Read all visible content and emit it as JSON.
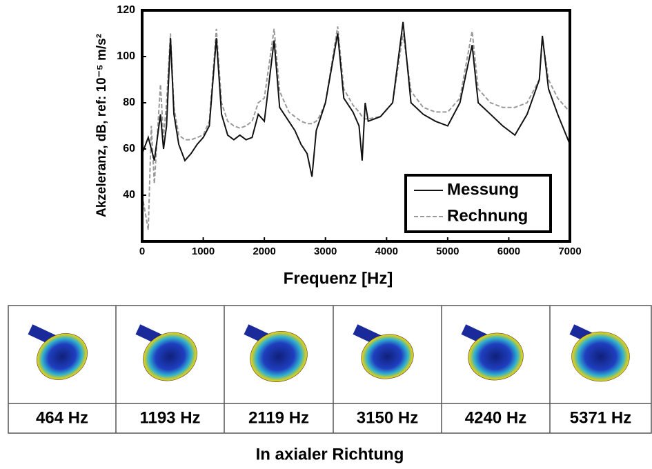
{
  "chart_data": {
    "type": "line",
    "xlabel": "Frequenz [Hz]",
    "ylabel": "Akzeleranz, dB, ref: 10⁻⁵ m/s²",
    "x": [
      0,
      100,
      150,
      200,
      300,
      350,
      400,
      464,
      520,
      600,
      700,
      800,
      900,
      1000,
      1100,
      1215,
      1300,
      1400,
      1500,
      1600,
      1700,
      1800,
      1900,
      2000,
      2160,
      2250,
      2400,
      2500,
      2600,
      2700,
      2780,
      2850,
      2900,
      3000,
      3200,
      3300,
      3450,
      3550,
      3600,
      3650,
      3700,
      3900,
      4100,
      4270,
      4400,
      4600,
      4800,
      5000,
      5200,
      5400,
      5500,
      5700,
      5900,
      6100,
      6300,
      6500,
      6550,
      6650,
      6800,
      7000
    ],
    "series": [
      {
        "name": "Messung",
        "color": "#111111",
        "dash": false,
        "values": [
          58,
          65,
          60,
          55,
          75,
          60,
          70,
          108,
          75,
          62,
          55,
          58,
          62,
          65,
          70,
          108,
          75,
          66,
          64,
          66,
          64,
          65,
          75,
          72,
          107,
          78,
          72,
          68,
          62,
          58,
          48,
          68,
          72,
          80,
          110,
          82,
          76,
          70,
          55,
          80,
          72,
          74,
          80,
          115,
          80,
          75,
          72,
          70,
          80,
          105,
          80,
          75,
          70,
          66,
          75,
          90,
          109,
          86,
          75,
          62
        ]
      },
      {
        "name": "Rechnung",
        "color": "#999999",
        "dash": true,
        "values": [
          40,
          25,
          70,
          45,
          88,
          65,
          80,
          110,
          78,
          66,
          64,
          64,
          65,
          66,
          72,
          112,
          80,
          72,
          70,
          69,
          70,
          72,
          80,
          82,
          112,
          85,
          76,
          74,
          72,
          71,
          71,
          72,
          74,
          80,
          113,
          86,
          79,
          76,
          74,
          73,
          73,
          74,
          80,
          110,
          85,
          78,
          76,
          76,
          82,
          111,
          86,
          80,
          78,
          78,
          80,
          90,
          108,
          90,
          82,
          76
        ]
      }
    ],
    "xlim": [
      0,
      7000
    ],
    "xticks": [
      0,
      1000,
      2000,
      3000,
      4000,
      5000,
      6000,
      7000
    ],
    "ylim": [
      20,
      120
    ],
    "yticks": [
      40,
      60,
      80,
      100,
      120
    ],
    "legend": "lower-right"
  },
  "modes": {
    "labels": [
      "464 Hz",
      "1193 Hz",
      "2119 Hz",
      "3150 Hz",
      "4240 Hz",
      "5371 Hz"
    ],
    "caption": "In axialer Richtung"
  }
}
